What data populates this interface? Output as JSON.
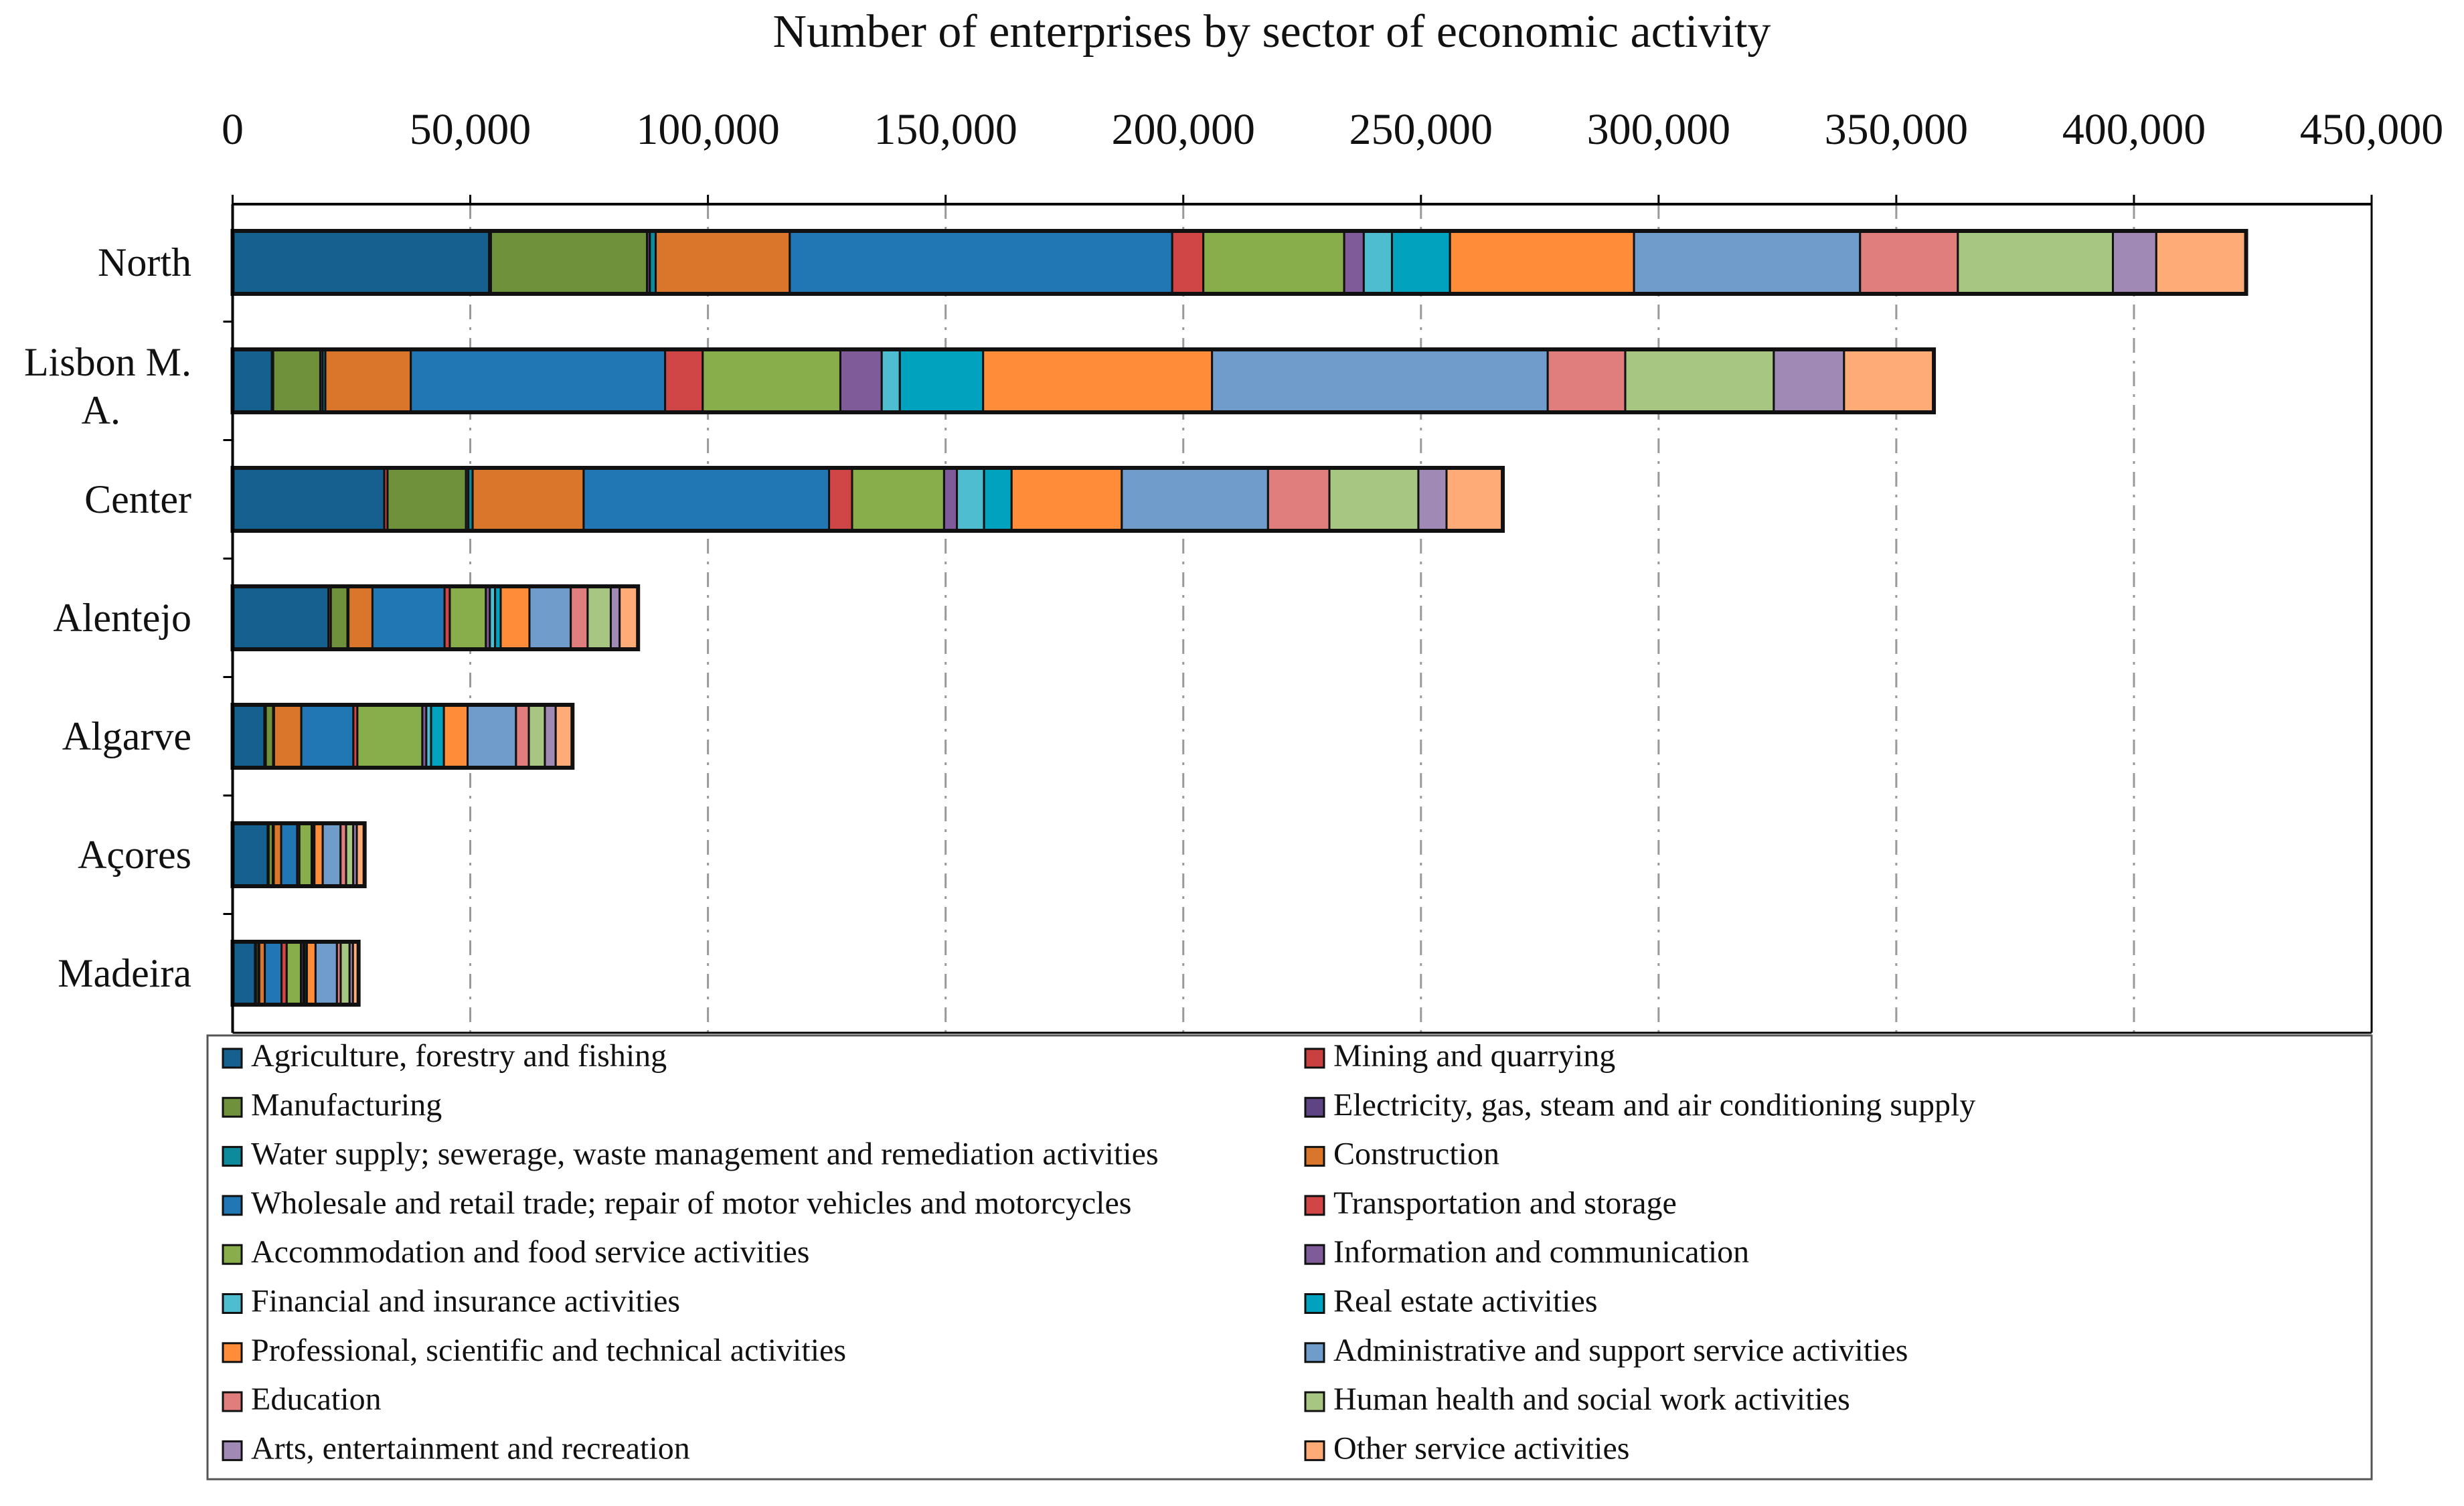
{
  "chart_data": {
    "type": "bar",
    "orientation": "horizontal",
    "stacked": true,
    "title": "Number of enterprises by sector of economic activity",
    "xlabel": "",
    "ylabel": "",
    "xlim": [
      0,
      450000
    ],
    "xticks": [
      "0",
      "50,000",
      "100,000",
      "150,000",
      "200,000",
      "250,000",
      "300,000",
      "350,000",
      "400,000",
      "450,000"
    ],
    "xtick_values": [
      0,
      50000,
      100000,
      150000,
      200000,
      250000,
      300000,
      350000,
      400000,
      450000
    ],
    "grid": "vertical dashed",
    "legend_position": "bottom",
    "categories": [
      "North",
      "Lisbon M. A.",
      "Center",
      "Alentejo",
      "Algarve",
      "Açores",
      "Madeira"
    ],
    "series": [
      {
        "name": "Agriculture, forestry and fishing",
        "color": "#15608f",
        "values": [
          53950,
          8240,
          31900,
          20160,
          6680,
          7380,
          4710
        ]
      },
      {
        "name": "Mining and quarrying",
        "color": "#c94040",
        "values": [
          400,
          300,
          700,
          500,
          300,
          200,
          200
        ]
      },
      {
        "name": "Manufacturing",
        "color": "#6f913b",
        "values": [
          32830,
          9900,
          16500,
          3500,
          1540,
          880,
          500
        ]
      },
      {
        "name": "Electricity, gas, steam and air conditioning supply",
        "color": "#5e4385",
        "values": [
          600,
          500,
          500,
          120,
          100,
          100,
          100
        ]
      },
      {
        "name": "Water supply; sewerage, waste management and remediation activities",
        "color": "#0d8a9c",
        "values": [
          1230,
          570,
          900,
          100,
          100,
          100,
          100
        ]
      },
      {
        "name": "Construction",
        "color": "#d9762b",
        "values": [
          28200,
          17980,
          23350,
          5040,
          5730,
          1550,
          1170
        ]
      },
      {
        "name": "Wholesale and retail trade; repair of motor vehicles and motorcycles",
        "color": "#2077b4",
        "values": [
          80460,
          53500,
          51630,
          15170,
          10950,
          3370,
          3510
        ]
      },
      {
        "name": "Transportation and storage",
        "color": "#d04545",
        "values": [
          6550,
          7910,
          4850,
          1100,
          850,
          470,
          1090
        ]
      },
      {
        "name": "Accommodation and food service activities",
        "color": "#88ae4b",
        "values": [
          29630,
          28960,
          19350,
          7590,
          13660,
          2570,
          2990
        ]
      },
      {
        "name": "Information and communication",
        "color": "#7f5c99",
        "values": [
          4120,
          8700,
          2700,
          840,
          840,
          200,
          500
        ]
      },
      {
        "name": "Financial and insurance activities",
        "color": "#4fbdd0",
        "values": [
          5930,
          3810,
          5700,
          1100,
          1000,
          200,
          300
        ]
      },
      {
        "name": "Real estate activities",
        "color": "#00a2bd",
        "values": [
          12210,
          17520,
          5800,
          1180,
          2700,
          200,
          450
        ]
      },
      {
        "name": "Professional, scientific and technical activities",
        "color": "#ff8c38",
        "values": [
          38710,
          48160,
          23180,
          6050,
          4980,
          1740,
          1830
        ]
      },
      {
        "name": "Administrative and support service activities",
        "color": "#709ccc",
        "values": [
          47560,
          70620,
          30770,
          8690,
          10190,
          3750,
          4500
        ]
      },
      {
        "name": "Education",
        "color": "#e07d7d",
        "values": [
          20570,
          16310,
          12910,
          3550,
          2700,
          1170,
          790
        ]
      },
      {
        "name": "Human health and social work activities",
        "color": "#a6c681",
        "values": [
          32620,
          31250,
          18720,
          4870,
          3370,
          1500,
          1870
        ]
      },
      {
        "name": "Arts, entertainment and recreation",
        "color": "#a189b5",
        "values": [
          9130,
          14780,
          5920,
          1860,
          2280,
          750,
          710
        ]
      },
      {
        "name": "Other service activities",
        "color": "#ffab78",
        "values": [
          18900,
          18900,
          11840,
          3880,
          3540,
          1640,
          1180
        ]
      }
    ]
  }
}
